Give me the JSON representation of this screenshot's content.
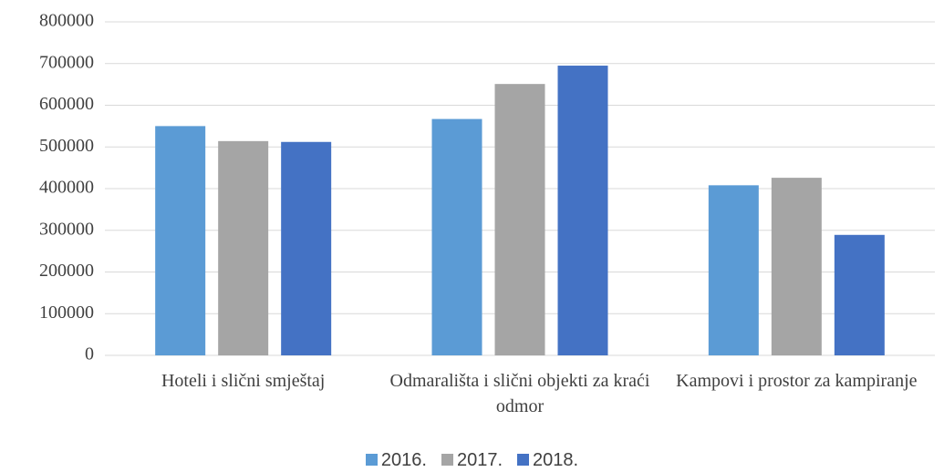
{
  "chart_data": {
    "type": "bar",
    "categories": [
      "Hoteli i slični smještaj",
      "Odmarališta i slični objekti za kraći odmor",
      "Kampovi i prostor za kampiranje"
    ],
    "series": [
      {
        "name": "2016.",
        "color": "#5b9bd5",
        "values": [
          550000,
          567000,
          408000
        ]
      },
      {
        "name": "2017.",
        "color": "#a5a5a5",
        "values": [
          514000,
          651000,
          426000
        ]
      },
      {
        "name": "2018.",
        "color": "#4472c4",
        "values": [
          512000,
          695000,
          289000
        ]
      }
    ],
    "ylim": [
      0,
      800000
    ],
    "yticks": [
      0,
      100000,
      200000,
      300000,
      400000,
      500000,
      600000,
      700000,
      800000
    ],
    "grid": true,
    "legend": "bottom"
  }
}
